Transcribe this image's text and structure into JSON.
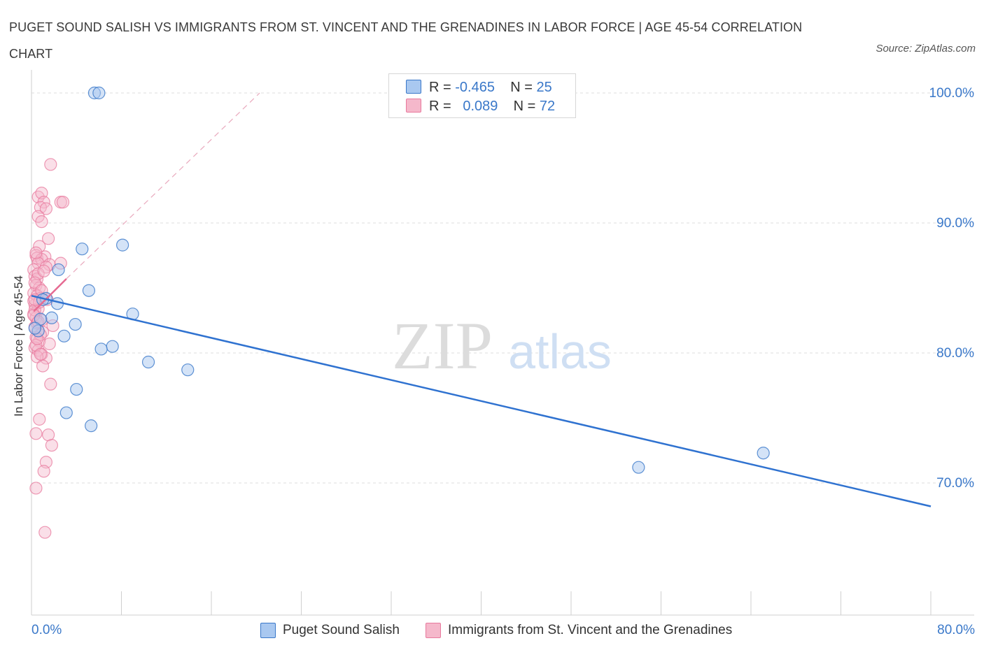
{
  "title": "PUGET SOUND SALISH VS IMMIGRANTS FROM ST. VINCENT AND THE GRENADINES IN LABOR FORCE | AGE 45-54 CORRELATION CHART",
  "source": "Source: ZipAtlas.com",
  "watermark": {
    "zip": "ZIP",
    "atlas": "atlas"
  },
  "legend": {
    "rows": [
      {
        "r_label": "R =",
        "r_value": "-0.465",
        "n_label": "N =",
        "n_value": "25",
        "color": "#a9c8f0"
      },
      {
        "r_label": "R =",
        "r_value": "0.089",
        "n_label": "N =",
        "n_value": "72",
        "color": "#f5b8cb"
      }
    ]
  },
  "bottom_legend": [
    {
      "label": "Puget Sound Salish",
      "color": "#a9c8f0"
    },
    {
      "label": "Immigrants from St. Vincent and the Grenadines",
      "color": "#f5b8cb"
    }
  ],
  "colors": {
    "blue": "#3a78c9",
    "blue_fill": "#a9c8f0",
    "blue_line": "#2f72d0",
    "pink": "#e8799d",
    "pink_fill": "#f5b8cb",
    "pink_line": "#e66a92",
    "grid": "#dddddd",
    "axis": "#cfcfcf",
    "tick_label": "#3a78c9"
  },
  "chart_data": {
    "type": "scatter",
    "title": "PUGET SOUND SALISH VS IMMIGRANTS FROM ST. VINCENT AND THE GRENADINES IN LABOR FORCE | AGE 45-54 CORRELATION CHART",
    "xlabel": "",
    "ylabel": "In Labor Force | Age 45-54",
    "xlim": [
      0,
      80
    ],
    "ylim": [
      61,
      101
    ],
    "x_tick_labels": [
      "0.0%",
      "80.0%"
    ],
    "y_ticks": [
      100,
      90,
      80,
      70
    ],
    "y_tick_labels": [
      "100.0%",
      "90.0%",
      "80.0%",
      "70.0%"
    ],
    "grid": true,
    "legend_position": "top-center",
    "series": [
      {
        "name": "Puget Sound Salish",
        "R": -0.465,
        "N": 25,
        "points": [
          [
            5.6,
            100.0
          ],
          [
            6.0,
            100.0
          ],
          [
            4.5,
            88.0
          ],
          [
            8.1,
            88.3
          ],
          [
            2.4,
            86.4
          ],
          [
            5.1,
            84.8
          ],
          [
            1.3,
            84.2
          ],
          [
            2.3,
            83.8
          ],
          [
            9.0,
            83.0
          ],
          [
            1.8,
            82.7
          ],
          [
            0.8,
            82.6
          ],
          [
            3.9,
            82.2
          ],
          [
            0.6,
            81.7
          ],
          [
            2.9,
            81.3
          ],
          [
            7.2,
            80.5
          ],
          [
            6.2,
            80.3
          ],
          [
            10.4,
            79.3
          ],
          [
            13.9,
            78.7
          ],
          [
            4.0,
            77.2
          ],
          [
            3.1,
            75.4
          ],
          [
            5.3,
            74.4
          ],
          [
            54.0,
            71.2
          ],
          [
            65.1,
            72.3
          ],
          [
            0.3,
            81.9
          ],
          [
            1.0,
            84.1
          ]
        ],
        "trend": {
          "x": [
            0,
            80
          ],
          "y": [
            84.4,
            68.2
          ]
        }
      },
      {
        "name": "Immigrants from St. Vincent and the Grenadines",
        "R": 0.089,
        "N": 72,
        "points": [
          [
            1.7,
            94.5
          ],
          [
            0.6,
            92.0
          ],
          [
            0.9,
            92.3
          ],
          [
            1.1,
            91.6
          ],
          [
            2.6,
            91.6
          ],
          [
            2.8,
            91.6
          ],
          [
            0.8,
            91.2
          ],
          [
            1.3,
            91.1
          ],
          [
            0.6,
            90.5
          ],
          [
            0.9,
            90.1
          ],
          [
            1.5,
            88.8
          ],
          [
            0.7,
            88.2
          ],
          [
            0.4,
            87.5
          ],
          [
            0.5,
            87.3
          ],
          [
            1.2,
            87.4
          ],
          [
            0.9,
            87.2
          ],
          [
            0.6,
            86.9
          ],
          [
            1.6,
            86.8
          ],
          [
            2.6,
            86.9
          ],
          [
            0.2,
            86.4
          ],
          [
            1.3,
            86.6
          ],
          [
            0.3,
            85.9
          ],
          [
            0.5,
            85.7
          ],
          [
            0.4,
            85.2
          ],
          [
            0.7,
            85.0
          ],
          [
            0.2,
            84.6
          ],
          [
            0.5,
            84.4
          ],
          [
            0.8,
            84.2
          ],
          [
            1.4,
            84.1
          ],
          [
            0.3,
            83.7
          ],
          [
            0.6,
            83.4
          ],
          [
            0.2,
            83.0
          ],
          [
            0.4,
            82.7
          ],
          [
            0.9,
            82.5
          ],
          [
            1.9,
            82.1
          ],
          [
            0.3,
            82.0
          ],
          [
            0.6,
            81.7
          ],
          [
            1.0,
            81.6
          ],
          [
            0.4,
            81.2
          ],
          [
            0.7,
            80.9
          ],
          [
            1.6,
            80.7
          ],
          [
            0.3,
            80.4
          ],
          [
            0.6,
            80.2
          ],
          [
            0.9,
            79.9
          ],
          [
            1.3,
            79.6
          ],
          [
            0.5,
            79.7
          ],
          [
            1.0,
            79.0
          ],
          [
            1.7,
            77.6
          ],
          [
            0.7,
            74.9
          ],
          [
            0.4,
            73.8
          ],
          [
            1.5,
            73.7
          ],
          [
            1.8,
            72.9
          ],
          [
            1.3,
            71.6
          ],
          [
            1.1,
            70.9
          ],
          [
            0.4,
            69.6
          ],
          [
            1.2,
            66.2
          ],
          [
            0.2,
            84.0
          ],
          [
            0.3,
            83.3
          ],
          [
            0.5,
            82.3
          ],
          [
            0.8,
            81.4
          ],
          [
            0.4,
            80.6
          ],
          [
            0.6,
            86.1
          ],
          [
            0.3,
            85.4
          ],
          [
            0.9,
            84.8
          ],
          [
            0.2,
            82.9
          ],
          [
            0.7,
            83.9
          ],
          [
            0.4,
            87.7
          ],
          [
            1.1,
            86.3
          ],
          [
            0.5,
            81.1
          ],
          [
            0.8,
            79.9
          ],
          [
            0.3,
            84.1
          ],
          [
            0.6,
            82.4
          ]
        ],
        "trend": {
          "x": [
            0.2,
            3.1
          ],
          "y": [
            83.2,
            85.7
          ]
        },
        "dashed_extension": {
          "x": [
            3.1,
            20.3
          ],
          "y": [
            85.7,
            100.0
          ]
        }
      }
    ]
  }
}
